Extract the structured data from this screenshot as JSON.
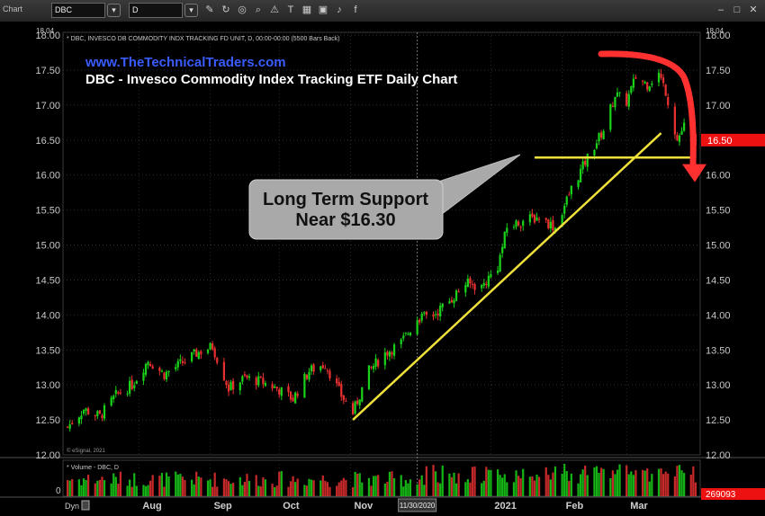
{
  "toolbar": {
    "app_label": "Chart",
    "symbol": "DBC",
    "interval": "D",
    "icons": [
      "link-icon",
      "settings-icon",
      "pencil-icon",
      "refresh-icon",
      "circle-icon",
      "search-icon",
      "alert-icon",
      "text-icon",
      "grid-icon",
      "save-icon",
      "twitter-icon",
      "facebook-icon"
    ]
  },
  "header": {
    "series_info": "* DBC, INVESCO DB COMMODITY INDX TRACKING FD UNIT, D, 00:00-00:00 (5500 Bars Back)",
    "website": "www.TheTechnicalTraders.com",
    "title": "DBC - Invesco Commodity Index Tracking ETF Daily Chart",
    "top_value": "18.04",
    "copyright": "© eSignal, 2021"
  },
  "callout": {
    "line1": "Long Term Support",
    "line2": "Near $16.30"
  },
  "volume": {
    "label": "* Volume - DBC, D",
    "zero_label": "0",
    "current": "269093"
  },
  "xaxis": {
    "dyn_label": "Dyn",
    "crosshair_label": "11/30/2020"
  },
  "colors": {
    "up": "#19d219",
    "down": "#e83030",
    "support": "#f0e03a",
    "arrow": "#ff3030",
    "website": "#3a5cff",
    "price_badge": "#ee1111"
  },
  "chart_data": {
    "type": "candlestick",
    "ylim": [
      12.0,
      18.04
    ],
    "yticks": [
      "18.00",
      "17.50",
      "17.00",
      "16.50",
      "16.00",
      "15.50",
      "15.00",
      "14.50",
      "14.00",
      "13.50",
      "13.00",
      "12.50",
      "12.00"
    ],
    "xticks": [
      "Aug",
      "Sep",
      "Oct",
      "Nov",
      "2021",
      "Feb",
      "Mar"
    ],
    "last_price": "16.50",
    "support_level": 16.25,
    "anchors": [
      {
        "date": "2020-07-01",
        "close": 12.4
      },
      {
        "date": "2020-07-08",
        "close": 12.65
      },
      {
        "date": "2020-07-15",
        "close": 12.55
      },
      {
        "date": "2020-07-22",
        "close": 12.85
      },
      {
        "date": "2020-07-29",
        "close": 13.0
      },
      {
        "date": "2020-08-05",
        "close": 13.35
      },
      {
        "date": "2020-08-12",
        "close": 13.15
      },
      {
        "date": "2020-08-19",
        "close": 13.3
      },
      {
        "date": "2020-08-26",
        "close": 13.45
      },
      {
        "date": "2020-09-02",
        "close": 13.55
      },
      {
        "date": "2020-09-09",
        "close": 12.95
      },
      {
        "date": "2020-09-16",
        "close": 13.1
      },
      {
        "date": "2020-09-23",
        "close": 13.05
      },
      {
        "date": "2020-09-30",
        "close": 12.95
      },
      {
        "date": "2020-10-07",
        "close": 12.8
      },
      {
        "date": "2020-10-14",
        "close": 13.2
      },
      {
        "date": "2020-10-21",
        "close": 13.3
      },
      {
        "date": "2020-10-28",
        "close": 12.85
      },
      {
        "date": "2020-11-02",
        "close": 12.6
      },
      {
        "date": "2020-11-09",
        "close": 13.2
      },
      {
        "date": "2020-11-16",
        "close": 13.45
      },
      {
        "date": "2020-11-23",
        "close": 13.6
      },
      {
        "date": "2020-11-30",
        "close": 13.95
      },
      {
        "date": "2020-12-07",
        "close": 14.0
      },
      {
        "date": "2020-12-14",
        "close": 14.2
      },
      {
        "date": "2020-12-21",
        "close": 14.45
      },
      {
        "date": "2020-12-28",
        "close": 14.4
      },
      {
        "date": "2021-01-04",
        "close": 14.7
      },
      {
        "date": "2021-01-08",
        "close": 15.25
      },
      {
        "date": "2021-01-15",
        "close": 15.35
      },
      {
        "date": "2021-01-22",
        "close": 15.4
      },
      {
        "date": "2021-01-29",
        "close": 15.25
      },
      {
        "date": "2021-02-05",
        "close": 15.8
      },
      {
        "date": "2021-02-12",
        "close": 16.25
      },
      {
        "date": "2021-02-19",
        "close": 16.65
      },
      {
        "date": "2021-02-24",
        "close": 17.15
      },
      {
        "date": "2021-03-01",
        "close": 17.05
      },
      {
        "date": "2021-03-05",
        "close": 17.4
      },
      {
        "date": "2021-03-10",
        "close": 17.3
      },
      {
        "date": "2021-03-15",
        "close": 17.45
      },
      {
        "date": "2021-03-18",
        "close": 17.2
      },
      {
        "date": "2021-03-23",
        "close": 16.5
      },
      {
        "date": "2021-03-26",
        "close": 16.7
      },
      {
        "date": "2021-03-31",
        "close": 16.5
      }
    ],
    "trendline": {
      "start": {
        "date": "2020-11-02",
        "price": 12.5
      },
      "end": {
        "date": "2021-03-16",
        "price": 16.6
      }
    },
    "support_line": {
      "start": {
        "date": "2021-01-20",
        "price": 16.25
      },
      "end": {
        "date": "2021-03-31",
        "price": 16.25
      }
    }
  }
}
